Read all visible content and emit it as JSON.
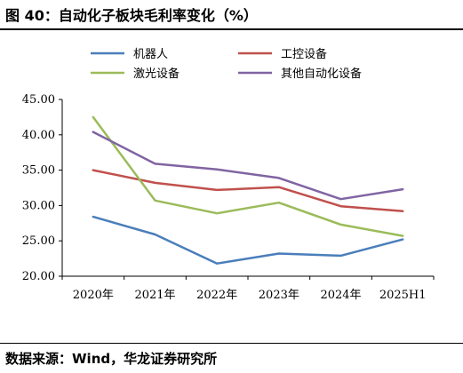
{
  "header": {
    "title": "图 40：自动化子板块毛利率变化（%）"
  },
  "footer": {
    "source": "数据来源：Wind，华龙证券研究所"
  },
  "chart_data": {
    "type": "line",
    "title": "",
    "xlabel": "",
    "ylabel": "",
    "categories": [
      "2020年",
      "2021年",
      "2022年",
      "2023年",
      "2024年",
      "2025H1"
    ],
    "ylim": [
      20,
      45
    ],
    "yticks": [
      "20.00",
      "25.00",
      "30.00",
      "35.00",
      "40.00",
      "45.00"
    ],
    "grid": false,
    "legend_position": "top",
    "series": [
      {
        "name": "机器人",
        "color": "#4a7ebb",
        "values": [
          28.4,
          25.9,
          21.8,
          23.2,
          22.9,
          25.2
        ]
      },
      {
        "name": "工控设备",
        "color": "#c0504d",
        "values": [
          35.0,
          33.2,
          32.2,
          32.6,
          29.9,
          29.2
        ]
      },
      {
        "name": "激光设备",
        "color": "#9bbb59",
        "values": [
          42.5,
          30.7,
          28.9,
          30.4,
          27.3,
          25.7
        ]
      },
      {
        "name": "其他自动化设备",
        "color": "#8064a2",
        "values": [
          40.4,
          35.9,
          35.1,
          33.9,
          30.9,
          32.3
        ]
      }
    ]
  }
}
